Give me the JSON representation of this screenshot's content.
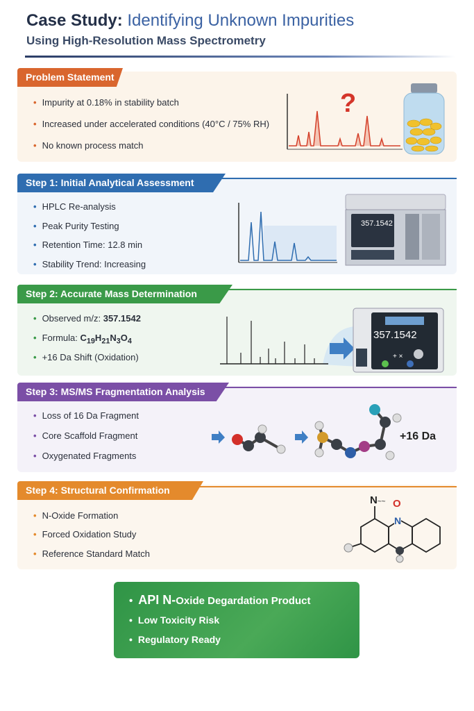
{
  "header": {
    "title_prefix": "Case Study:",
    "title_accent": "Identifying Unknown Impurities",
    "subtitle": "Using High-Resolution Mass Spectrometry"
  },
  "colors": {
    "problem": "#d9662e",
    "step1": "#2f6db0",
    "step2": "#3a9a48",
    "step3": "#7b4fa6",
    "step4": "#e48a2c",
    "final": "#3a9e4d"
  },
  "problem": {
    "label": "Problem Statement",
    "bullets": [
      "Impurity at 0.18% in stability batch",
      "Increased under accelerated conditions (40°C / 75% RH)",
      "No known process match"
    ],
    "icon": "question-mark",
    "illustration": "chromatogram-with-pill-bottle"
  },
  "step1": {
    "label": "Step 1: Initial Analytical Assessment",
    "bullets": [
      "HPLC Re-analysis",
      "Peak Purity Testing",
      "Retention Time: 12.8 min",
      "Stability Trend: Increasing"
    ],
    "instrument_display": "357.1542"
  },
  "step2": {
    "label": "Step 2: Accurate Mass Determination",
    "observed_label": "Observed m/z:",
    "observed_value": "357.1542",
    "formula_label": "Formula:",
    "formula": {
      "C": "C",
      "c_n": "19",
      "H": "H",
      "h_n": "21",
      "N": "N",
      "n_n": "3",
      "O": "O",
      "o_n": "4"
    },
    "shift": "+16 Da Shift (Oxidation)",
    "instrument_display": "357.1542",
    "instrument_symbols": "+ ×"
  },
  "step3": {
    "label": "Step 3: MS/MS Fragmentation Analysis",
    "bullets": [
      "Loss of 16 Da Fragment",
      "Core Scaffold Fragment",
      "Oxygenated Fragments"
    ],
    "annotation": "+16 Da"
  },
  "step4": {
    "label": "Step 4: Structural Confirmation",
    "bullets": [
      "N-Oxide Formation",
      "Forced Oxidation Study",
      "Reference Standard Match"
    ],
    "structure_labels": {
      "n_top": "N",
      "o": "O",
      "n_ring": "N",
      "bond": "~~"
    }
  },
  "conclusion": {
    "highlight": "API N-",
    "rest": "Oxide Degardation Product",
    "items": [
      "Low Toxicity Risk",
      "Regulatory Ready"
    ]
  }
}
